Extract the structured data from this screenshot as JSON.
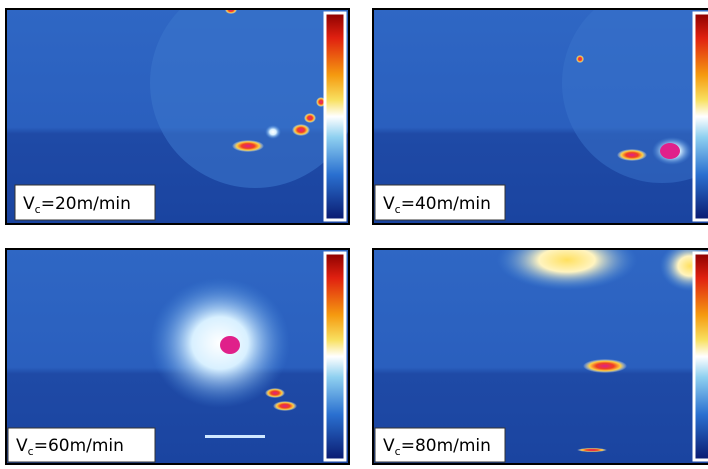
{
  "panels": [
    {
      "label": {
        "symbol": "V",
        "subscript": "c",
        "rest": "=20m/min"
      }
    },
    {
      "label": {
        "symbol": "V",
        "subscript": "c",
        "rest": "=40m/min"
      }
    },
    {
      "label": {
        "symbol": "V",
        "subscript": "c",
        "rest": "=60m/min"
      }
    },
    {
      "label": {
        "symbol": "V",
        "subscript": "c",
        "rest": "=80m/min"
      }
    }
  ]
}
